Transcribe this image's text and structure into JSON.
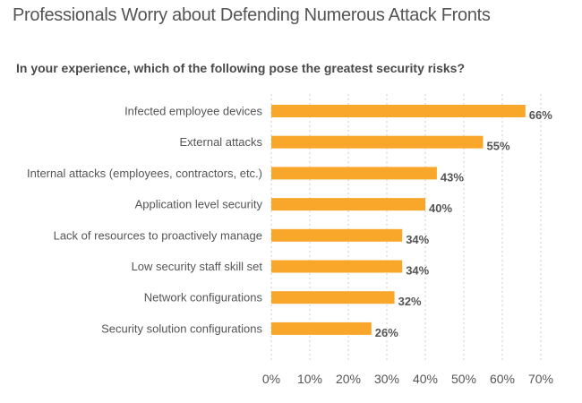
{
  "chart_data": {
    "type": "bar",
    "orientation": "horizontal",
    "title": "Professionals Worry about Defending Numerous Attack Fronts",
    "subtitle": "In your experience, which of the following pose the greatest security risks?",
    "categories": [
      "Infected employee devices",
      "External attacks",
      "Internal attacks (employees, contractors, etc.)",
      "Application level security",
      "Lack of resources to proactively manage",
      "Low security staff skill set",
      "Network configurations",
      "Security solution configurations"
    ],
    "values": [
      66,
      55,
      43,
      40,
      34,
      34,
      32,
      26
    ],
    "value_labels": [
      "66%",
      "55%",
      "43%",
      "40%",
      "34%",
      "34%",
      "32%",
      "26%"
    ],
    "xlim": [
      0,
      70
    ],
    "xticks": [
      0,
      10,
      20,
      30,
      40,
      50,
      60,
      70
    ],
    "xtick_labels": [
      "0%",
      "10%",
      "20%",
      "30%",
      "40%",
      "50%",
      "60%",
      "70%"
    ],
    "grid": "vertical dashed",
    "bar_color": "#f9a72b",
    "grid_color": "#cccccc"
  }
}
